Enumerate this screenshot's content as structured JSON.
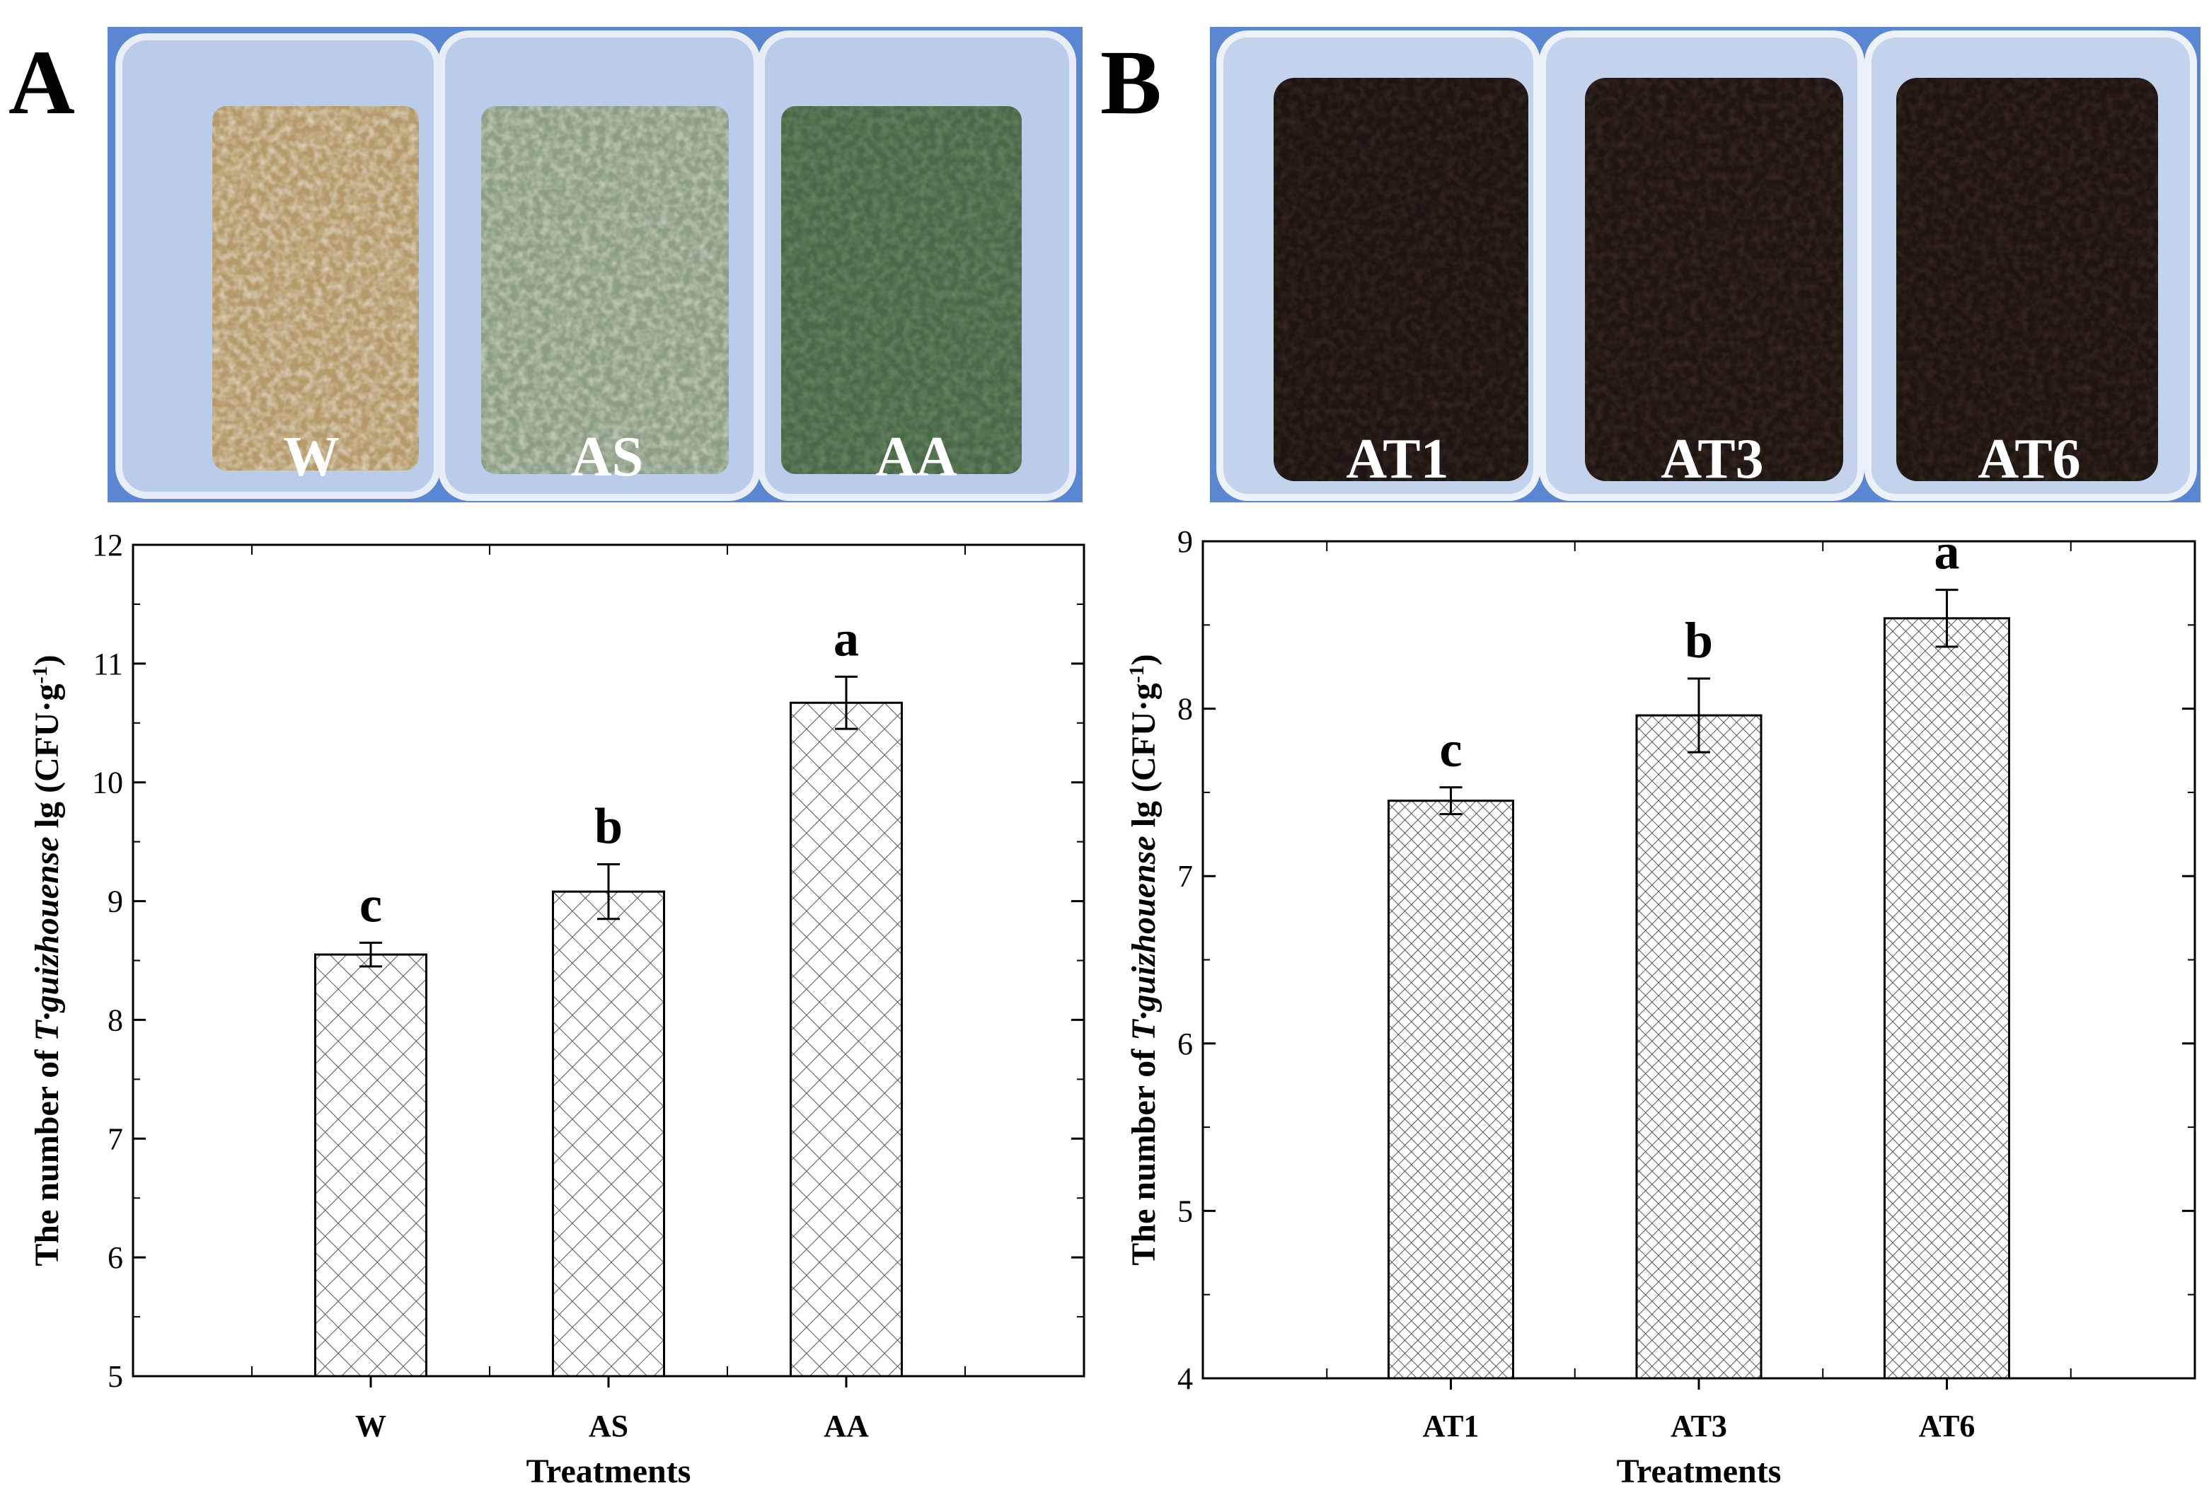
{
  "panels": [
    {
      "letter": "A",
      "photo": {
        "background": "#5a86d2",
        "boxes": [
          {
            "label": "W",
            "fill": "#b49a6a",
            "speckle": "#e2d8c6"
          },
          {
            "label": "AS",
            "fill": "#8e9e86",
            "speckle": "#c9d2c3"
          },
          {
            "label": "AA",
            "fill": "#4a6a47",
            "speckle": "#6d8a66"
          }
        ]
      }
    },
    {
      "letter": "B",
      "photo": {
        "background": "#5a86d2",
        "boxes": [
          {
            "label": "AT1",
            "fill": "#1c1512",
            "speckle": "#3a2a22"
          },
          {
            "label": "AT3",
            "fill": "#1e1613",
            "speckle": "#3b2b22"
          },
          {
            "label": "AT6",
            "fill": "#1d1512",
            "speckle": "#3a2a21"
          }
        ]
      }
    }
  ],
  "chart_data": [
    {
      "type": "bar",
      "panel": "A",
      "categories": [
        "W",
        "AS",
        "AA"
      ],
      "values": [
        8.55,
        9.08,
        10.67
      ],
      "errors": [
        0.1,
        0.23,
        0.22
      ],
      "significance": [
        "c",
        "b",
        "a"
      ],
      "xlabel": "Treatments",
      "ylabel_prefix": "The number of ",
      "ylabel_italic": "T·guizhouense",
      "ylabel_suffix": " lg (CFU·g",
      "ylabel_sup": "-1",
      "ylabel_end": ")",
      "ylim": [
        5,
        12
      ],
      "yticks": [
        5,
        6,
        7,
        8,
        9,
        10,
        11,
        12
      ],
      "hatch": "sparse"
    },
    {
      "type": "bar",
      "panel": "B",
      "categories": [
        "AT1",
        "AT3",
        "AT6"
      ],
      "values": [
        7.45,
        7.96,
        8.54
      ],
      "errors": [
        0.08,
        0.22,
        0.17
      ],
      "significance": [
        "c",
        "b",
        "a"
      ],
      "xlabel": "Treatments",
      "ylabel_prefix": "The number of ",
      "ylabel_italic": "T·guizhouense",
      "ylabel_suffix": " lg (CFU·g",
      "ylabel_sup": "-1",
      "ylabel_end": ")",
      "ylim": [
        4,
        9
      ],
      "yticks": [
        4,
        5,
        6,
        7,
        8,
        9
      ],
      "hatch": "dense"
    }
  ]
}
